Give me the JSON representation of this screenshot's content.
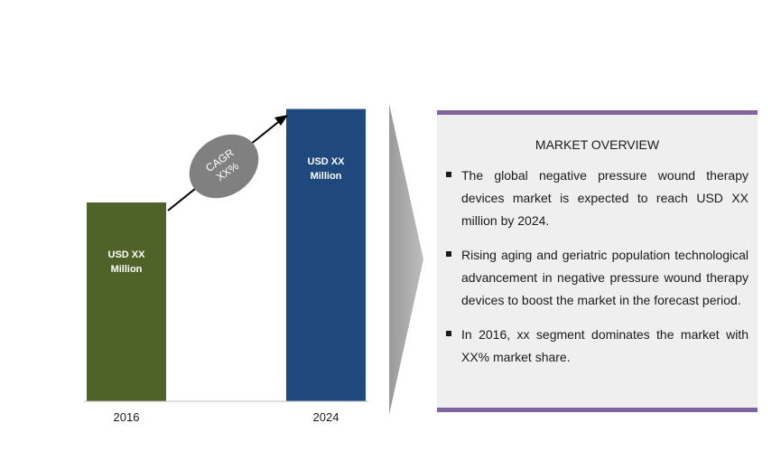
{
  "chart_data": {
    "type": "bar",
    "categories": [
      "2016",
      "2024"
    ],
    "values": [
      1,
      1.47
    ],
    "bar_labels": [
      [
        "USD  XX",
        "Million"
      ],
      [
        "USD  XX",
        "Million"
      ]
    ],
    "colors": [
      "#4f6228",
      "#1f497d"
    ],
    "ylim": [
      0,
      1.5
    ],
    "annotation": {
      "lines": [
        "CAGR",
        "XX%"
      ]
    }
  },
  "overview": {
    "title": "MARKET OVERVIEW",
    "accent": "#8064a2",
    "bullets": [
      "The global negative pressure wound therapy devices market is expected to reach USD  XX million by 2024.",
      "Rising aging and geriatric population technological advancement in negative pressure wound therapy devices to boost the market in the forecast period.",
      "In 2016, xx segment dominates the market with XX% market share."
    ]
  }
}
